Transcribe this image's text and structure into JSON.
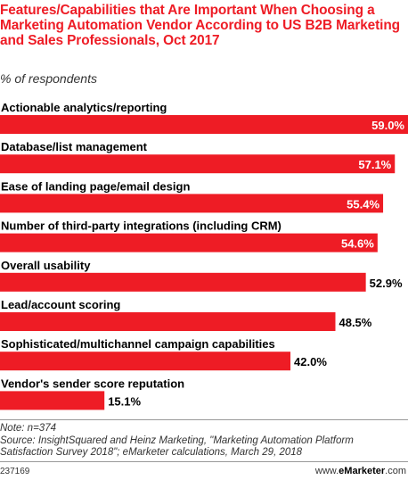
{
  "chart_data": {
    "type": "bar",
    "orientation": "horizontal",
    "title": "Features/Capabilities that Are Important When Choosing a Marketing Automation Vendor According to US B2B Marketing and Sales Professionals, Oct 2017",
    "subtitle": "% of respondents",
    "categories": [
      "Actionable analytics/reporting",
      "Database/list management",
      "Ease of landing page/email design",
      "Number of third-party integrations (including CRM)",
      "Overall usability",
      "Lead/account scoring",
      "Sophisticated/multichannel campaign capabilities",
      "Vendor's sender score reputation"
    ],
    "values": [
      59.0,
      57.1,
      55.4,
      54.6,
      52.9,
      48.5,
      42.0,
      15.1
    ],
    "value_labels": [
      "59.0%",
      "57.1%",
      "55.4%",
      "54.6%",
      "52.9%",
      "48.5%",
      "42.0%",
      "15.1%"
    ],
    "bar_color": "#ee1c25",
    "xlim": [
      0,
      59.0
    ]
  },
  "footer": {
    "note": "Note: n=374",
    "source": "Source: InsightSquared and Heinz Marketing, \"Marketing Automation Platform Satisfaction Survey 2018\"; eMarketer calculations, March 29, 2018",
    "chart_id": "237169",
    "brand_prefix": "www.",
    "brand_name": "eMarketer",
    "brand_suffix": ".com"
  }
}
